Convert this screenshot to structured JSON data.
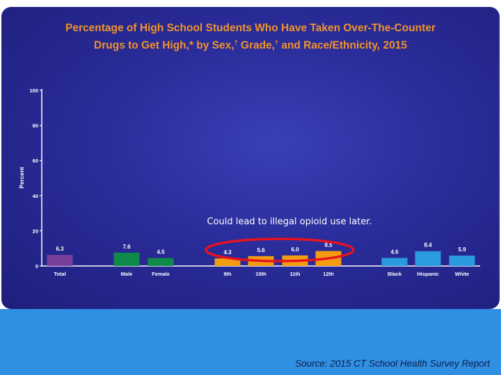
{
  "title_parts": {
    "line1": "Percentage of High School Students Who Have Taken Over-The-Counter",
    "line2_a": "Drugs to Get High,* by Sex,",
    "dagger1": "†",
    "line2_b": " Grade,",
    "dagger2": "†",
    "line2_c": " and Race/Ethnicity, 2015"
  },
  "annotation": "Could lead to illegal opioid use later.",
  "source": "Source: 2015 CT School Health Survey Report",
  "colors": {
    "total": "#7a3f9c",
    "sex": "#0f8a4a",
    "grade": "#f39c12",
    "race": "#2a9be0",
    "circle": "#e8121e",
    "title": "#f0932b",
    "footer": "#2f8fe3"
  },
  "chart_data": {
    "type": "bar",
    "title": "Percentage of High School Students Who Have Taken Over-The-Counter Drugs to Get High,* by Sex,† Grade,† and Race/Ethnicity, 2015",
    "xlabel": "",
    "ylabel": "Percent",
    "ylim": [
      0,
      100
    ],
    "yticks": [
      0,
      20,
      40,
      60,
      80,
      100
    ],
    "grid": false,
    "categories": [
      "Total",
      "Male",
      "Female",
      "9th",
      "10th",
      "11th",
      "12th",
      "Black",
      "Hispanic",
      "White"
    ],
    "values": [
      6.3,
      7.6,
      4.5,
      4.3,
      5.6,
      6.0,
      8.5,
      4.6,
      8.4,
      5.9
    ],
    "value_labels": [
      "6.3",
      "7.6",
      "4.5",
      "4.3",
      "5.6",
      "6.0",
      "8.5",
      "4.6",
      "8.4",
      "5.9"
    ],
    "groups": [
      "total",
      "sex",
      "sex",
      "grade",
      "grade",
      "grade",
      "grade",
      "race",
      "race",
      "race"
    ]
  }
}
